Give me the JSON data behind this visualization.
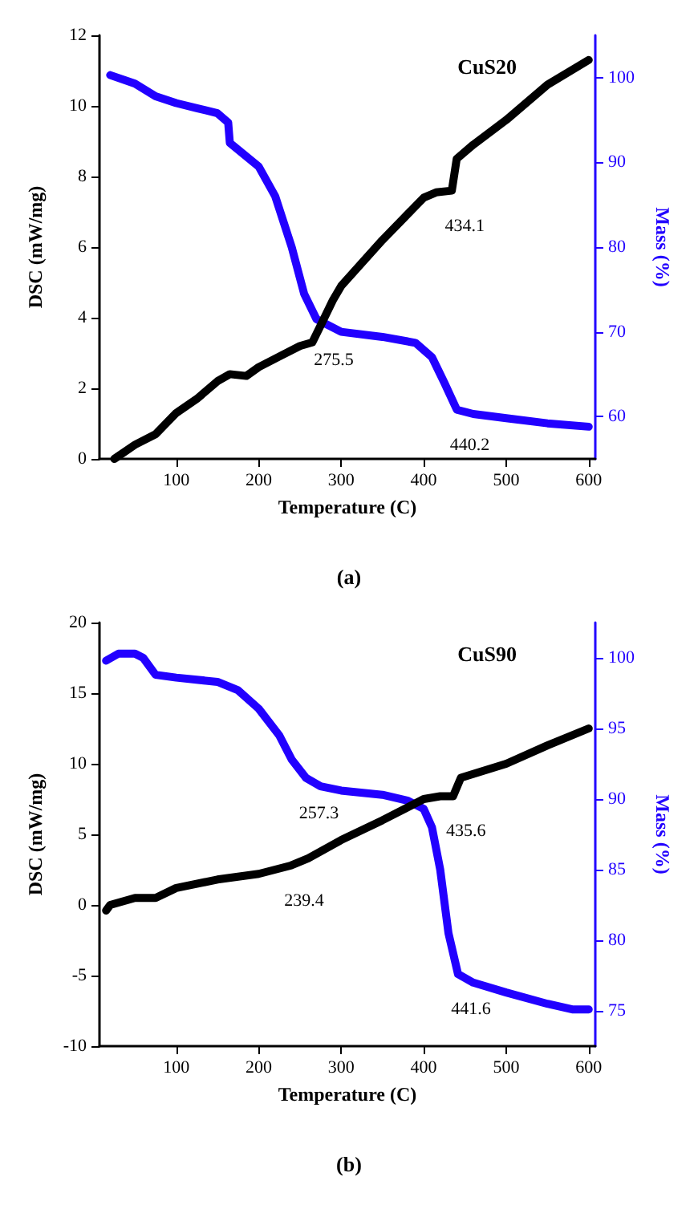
{
  "chart_data": [
    {
      "type": "line",
      "title": "CuS20",
      "xlabel": "Temperature (C)",
      "ylabel": "DSC (mW/mg)",
      "y2label": "Mass (%)",
      "xlim": [
        7,
        608
      ],
      "xticks": [
        100,
        200,
        300,
        400,
        500,
        600
      ],
      "ylim": [
        0,
        12
      ],
      "yticks": [
        0,
        2,
        4,
        6,
        8,
        10,
        12
      ],
      "y2lim": [
        55,
        105
      ],
      "y2ticks": [
        60,
        70,
        80,
        90,
        100
      ],
      "grid": false,
      "marker": "none",
      "line_style": "solid",
      "series": [
        {
          "color": "#000000",
          "x": [
            25,
            50,
            75,
            100,
            125,
            150,
            165,
            185,
            200,
            225,
            250,
            265,
            275.5,
            290,
            300,
            350,
            400,
            415,
            434.1,
            440,
            460,
            500,
            550,
            600
          ],
          "values": [
            0,
            0.4,
            0.7,
            1.3,
            1.7,
            2.2,
            2.4,
            2.35,
            2.6,
            2.9,
            3.2,
            3.3,
            3.8,
            4.5,
            4.9,
            6.2,
            7.4,
            7.55,
            7.6,
            8.5,
            8.9,
            9.6,
            10.6,
            11.3
          ]
        },
        {
          "color": "#2200ff",
          "axis": "y2",
          "x": [
            20,
            50,
            75,
            100,
            125,
            150,
            163,
            165,
            200,
            220,
            240,
            255,
            270,
            300,
            350,
            390,
            410,
            425,
            440.2,
            460,
            500,
            550,
            600
          ],
          "values": [
            100.3,
            99.3,
            97.8,
            97,
            96.4,
            95.8,
            94.7,
            92.3,
            89.5,
            86,
            80,
            74.5,
            71.5,
            70,
            69.4,
            68.7,
            67,
            64,
            60.8,
            60.3,
            59.8,
            59.2,
            58.8
          ]
        }
      ],
      "annotations": [
        {
          "text": "434.1",
          "x": 434.1,
          "y": 7.6
        },
        {
          "text": "275.5",
          "x": 275.5,
          "y": 3.8
        },
        {
          "text": "440.2",
          "x": 440.2,
          "y": 1.39
        },
        "(a)"
      ]
    },
    {
      "type": "line",
      "title": "CuS90",
      "xlabel": "Temperature (C)",
      "ylabel": "DSC (mW/mg)",
      "y2label": "Mass (%)",
      "xlim": [
        7,
        608
      ],
      "xticks": [
        100,
        200,
        300,
        400,
        500,
        600
      ],
      "ylim": [
        -10,
        20
      ],
      "yticks": [
        -10,
        -5,
        0,
        5,
        10,
        15,
        20
      ],
      "y2lim": [
        72.5,
        102.5
      ],
      "y2ticks": [
        75,
        80,
        85,
        90,
        95,
        100
      ],
      "grid": false,
      "marker": "none",
      "line_style": "solid",
      "series": [
        {
          "color": "#000000",
          "x": [
            15,
            20,
            50,
            75,
            100,
            150,
            200,
            239.4,
            260,
            300,
            350,
            400,
            420,
            435.6,
            445,
            500,
            550,
            600
          ],
          "values": [
            -0.4,
            0,
            0.5,
            0.5,
            1.2,
            1.8,
            2.2,
            2.8,
            3.3,
            4.6,
            6.0,
            7.5,
            7.7,
            7.7,
            9.0,
            10.0,
            11.3,
            12.5
          ]
        },
        {
          "color": "#2200ff",
          "axis": "y2",
          "x": [
            15,
            30,
            50,
            60,
            75,
            100,
            150,
            175,
            200,
            225,
            240,
            257.3,
            275,
            300,
            350,
            380,
            400,
            410,
            420,
            430,
            441.6,
            460,
            500,
            550,
            580,
            600
          ],
          "values": [
            99.8,
            100.3,
            100.3,
            100,
            98.8,
            98.6,
            98.3,
            97.7,
            96.4,
            94.5,
            92.8,
            91.5,
            90.9,
            90.6,
            90.3,
            89.9,
            89.3,
            88,
            85,
            80.5,
            77.6,
            77,
            76.3,
            75.5,
            75.1,
            75.1
          ]
        }
      ],
      "annotations": [
        {
          "text": "257.3",
          "x": 257.3,
          "y": 9.0
        },
        {
          "text": "239.4",
          "x": 239.4,
          "y": 2.8
        },
        {
          "text": "435.6",
          "x": 435.6,
          "y": 7.7
        },
        {
          "text": "441.6",
          "x": 441.6,
          "y": -4.9
        },
        "(b)"
      ]
    }
  ]
}
